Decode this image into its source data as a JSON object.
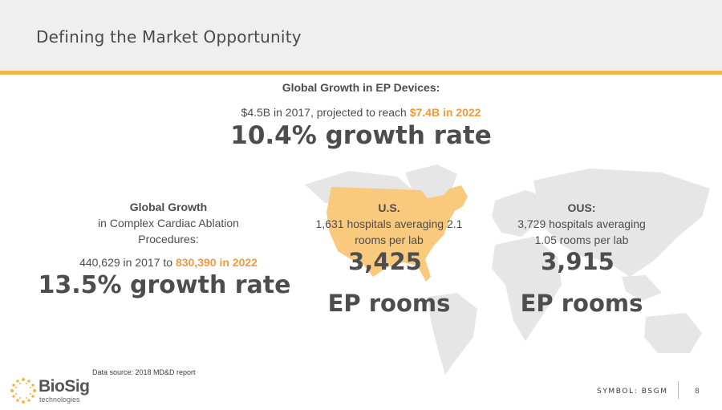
{
  "header": {
    "title": "Defining the Market Opportunity"
  },
  "colors": {
    "accent": "#f2b648",
    "highlight": "#ef9a3d",
    "text": "#4d4d4f",
    "map_us": "#f9c97e",
    "map_world": "#e4e4e4"
  },
  "ep_devices": {
    "heading": "Global Growth in EP Devices:",
    "line_prefix": "$4.5B in 2017, projected to reach ",
    "line_highlight": "$7.4B in 2022",
    "growth": "10.4% growth rate"
  },
  "ablation": {
    "heading": "Global Growth",
    "sub1": "in Complex Cardiac Ablation",
    "sub2": "Procedures:",
    "line_prefix": "440,629 in 2017 to ",
    "line_highlight": "830,390 in 2022",
    "growth": "13.5% growth rate"
  },
  "us": {
    "heading": "U.S.",
    "line1": "1,631 hospitals averaging 2.1",
    "line2": "rooms per lab",
    "count": "3,425",
    "unit": "EP rooms"
  },
  "ous": {
    "heading": "OUS:",
    "line1": "3,729 hospitals averaging",
    "line2": "1.05 rooms per lab",
    "count": "3,915",
    "unit": "EP rooms"
  },
  "footer": {
    "source": "Data source: 2018 MD&D report",
    "logo_name": "BioSig",
    "logo_sub": "technologies",
    "symbol": "SYMBOL: BSGM",
    "page": "8"
  }
}
